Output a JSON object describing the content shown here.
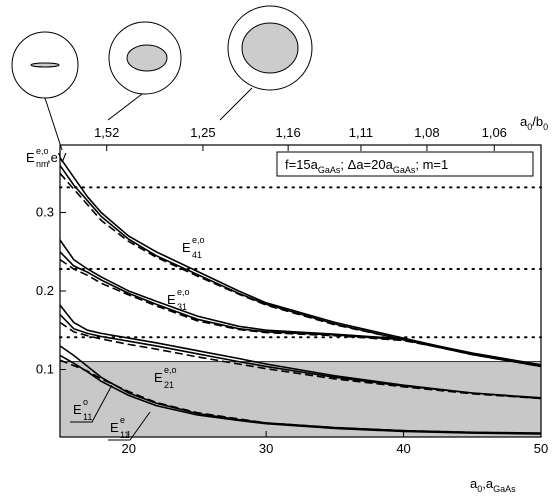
{
  "chart_data": {
    "type": "line",
    "x": [
      15,
      16,
      17,
      18,
      20,
      22,
      25,
      28,
      30,
      35,
      40,
      45,
      50
    ],
    "series": [
      {
        "color": "#000",
        "dash": false,
        "values": [
          0.37,
          0.345,
          0.32,
          0.3,
          0.27,
          0.25,
          0.225,
          0.2,
          0.185,
          0.16,
          0.14,
          0.12,
          0.105
        ]
      },
      {
        "color": "#000",
        "dash": false,
        "values": [
          0.36,
          0.335,
          0.315,
          0.295,
          0.266,
          0.245,
          0.221,
          0.197,
          0.183,
          0.158,
          0.138,
          0.119,
          0.104
        ]
      },
      {
        "color": "#000",
        "dash": true,
        "values": [
          0.35,
          0.33,
          0.31,
          0.29,
          0.263,
          0.243,
          0.219,
          0.196,
          0.182,
          0.157,
          0.138,
          0.119,
          0.104
        ]
      },
      {
        "color": "#000",
        "dash": false,
        "values": [
          0.265,
          0.24,
          0.228,
          0.218,
          0.2,
          0.187,
          0.168,
          0.155,
          0.15,
          0.145,
          0.139,
          0.121,
          0.106
        ]
      },
      {
        "color": "#000",
        "dash": false,
        "values": [
          0.25,
          0.232,
          0.224,
          0.214,
          0.197,
          0.183,
          0.164,
          0.152,
          0.148,
          0.144,
          0.138,
          0.12,
          0.105
        ]
      },
      {
        "color": "#000",
        "dash": true,
        "values": [
          0.24,
          0.228,
          0.22,
          0.21,
          0.195,
          0.181,
          0.162,
          0.151,
          0.147,
          0.143,
          0.137,
          0.12,
          0.105
        ]
      },
      {
        "color": "#000",
        "dash": false,
        "values": [
          0.182,
          0.16,
          0.15,
          0.146,
          0.14,
          0.134,
          0.124,
          0.114,
          0.107,
          0.092,
          0.08,
          0.07,
          0.064
        ]
      },
      {
        "color": "#000",
        "dash": false,
        "values": [
          0.17,
          0.152,
          0.146,
          0.142,
          0.136,
          0.13,
          0.12,
          0.11,
          0.104,
          0.09,
          0.079,
          0.07,
          0.063
        ]
      },
      {
        "color": "#000",
        "dash": true,
        "values": [
          0.16,
          0.148,
          0.143,
          0.139,
          0.132,
          0.126,
          0.116,
          0.107,
          0.101,
          0.088,
          0.078,
          0.069,
          0.063
        ]
      },
      {
        "color": "#000",
        "dash": false,
        "values": [
          0.13,
          0.118,
          0.104,
          0.09,
          0.07,
          0.057,
          0.044,
          0.036,
          0.032,
          0.026,
          0.022,
          0.02,
          0.019
        ]
      },
      {
        "color": "#000",
        "dash": false,
        "values": [
          0.118,
          0.108,
          0.097,
          0.085,
          0.067,
          0.054,
          0.042,
          0.035,
          0.031,
          0.025,
          0.021,
          0.019,
          0.018
        ]
      },
      {
        "color": "#000",
        "dash": true,
        "values": [
          0.112,
          0.105,
          0.098,
          0.088,
          0.072,
          0.058,
          0.045,
          0.037,
          0.032,
          0.026,
          0.022,
          0.02,
          0.018
        ]
      }
    ],
    "xlim": [
      15,
      50
    ],
    "ylim": [
      0.014,
      0.386
    ],
    "xticks": [
      20,
      30,
      40,
      50
    ],
    "yticks": [
      0.1,
      0.2,
      0.3
    ],
    "top_ticks": [
      {
        "value": 18.4,
        "label": "1,52"
      },
      {
        "value": 25.4,
        "label": "1,25"
      },
      {
        "value": 31.6,
        "label": "1,16"
      },
      {
        "value": 36.9,
        "label": "1,11"
      },
      {
        "value": 41.7,
        "label": "1,08"
      },
      {
        "value": 46.6,
        "label": "1,06"
      }
    ],
    "shade_below": 0.11,
    "shade_color": "#c8c8c8",
    "ref_lines": [
      0.332,
      0.228,
      0.141
    ],
    "xlabel": {
      "text": "a",
      "sub1": "0",
      "mid": ",a",
      "sub2": "GaAs"
    },
    "toplabel": {
      "text": "a",
      "sub1": "0",
      "mid": "/b",
      "sub2": "0"
    },
    "ylabel": {
      "text": "E",
      "sub": "nm",
      "sup": "e,o",
      "unit": ",eV"
    },
    "box_label": [
      {
        "t": "f=15a"
      },
      {
        "sub": "GaAs"
      },
      {
        "t": "; Δa=20a"
      },
      {
        "sub": "GaAs"
      },
      {
        "t": "; m=1"
      }
    ],
    "annotations": [
      {
        "text": "E",
        "sup": "e,o",
        "sub": "41"
      },
      {
        "text": "E",
        "sup": "e,o",
        "sub": "31"
      },
      {
        "text": "E",
        "sup": "e,o",
        "sub": "21"
      },
      {
        "text": "E",
        "sup": "o",
        "sub": "11"
      },
      {
        "text": "E",
        "sup": "e",
        "sub": "11"
      }
    ]
  }
}
